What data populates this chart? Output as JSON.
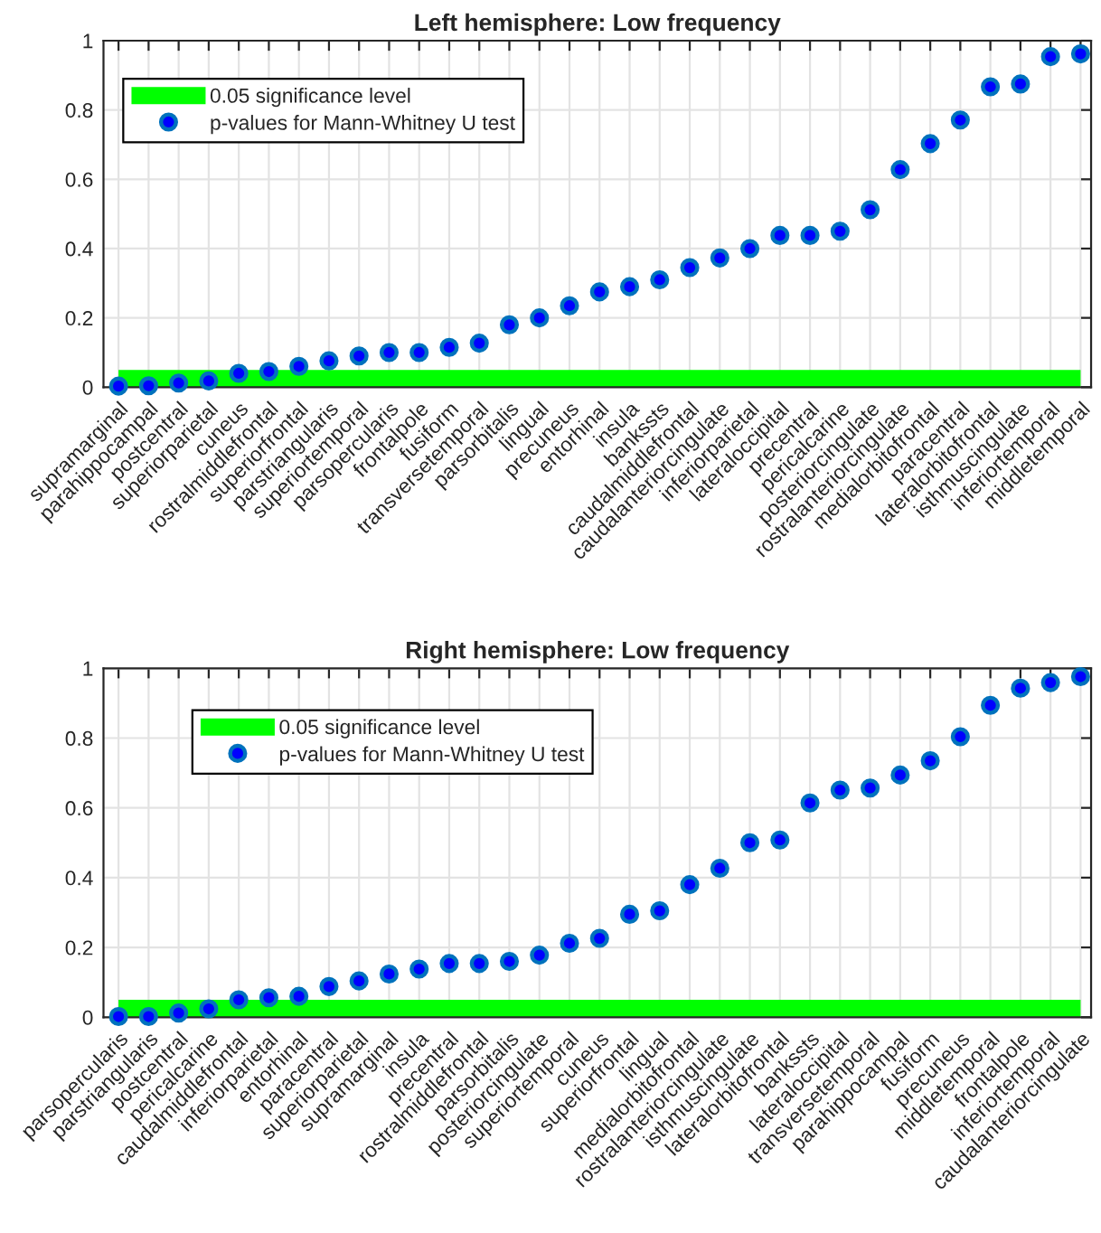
{
  "chart_data": [
    {
      "type": "scatter",
      "title": "Left hemisphere: Low frequency",
      "categories": [
        "supramarginal",
        "parahippocampal",
        "postcentral",
        "superiorparietal",
        "cuneus",
        "rostralmiddlefrontal",
        "superiorfrontal",
        "parstriangularis",
        "superiortemporal",
        "parsopercularis",
        "frontalpole",
        "fusiform",
        "transversetemporal",
        "parsorbitalis",
        "lingual",
        "precuneus",
        "entorhinal",
        "insula",
        "bankssts",
        "caudalmiddlefrontal",
        "caudalanteriorcingulate",
        "inferiorparietal",
        "lateraloccipital",
        "precentral",
        "pericalcarine",
        "posteriorcingulate",
        "rostralanteriorcingulate",
        "medialorbitofrontal",
        "paracentral",
        "lateralorbitofrontal",
        "isthmuscingulate",
        "inferiortemporal",
        "middletemporal"
      ],
      "series": [
        {
          "name": "p-values for Mann-Whitney U test",
          "color": "#0072bd",
          "values": [
            0.003,
            0.004,
            0.012,
            0.018,
            0.04,
            0.045,
            0.06,
            0.076,
            0.09,
            0.1,
            0.1,
            0.115,
            0.127,
            0.18,
            0.2,
            0.235,
            0.275,
            0.29,
            0.31,
            0.345,
            0.373,
            0.4,
            0.438,
            0.438,
            0.45,
            0.512,
            0.628,
            0.703,
            0.771,
            0.867,
            0.875,
            0.954,
            0.962
          ]
        }
      ],
      "ylim": [
        0,
        1
      ],
      "yticks": [
        0,
        0.2,
        0.4,
        0.6,
        0.8,
        1
      ],
      "grid": true,
      "legend": "top left",
      "marker": "circle",
      "bands": [
        {
          "axis": "y",
          "from": 0,
          "to": 0.05,
          "label": "0.05 significance level",
          "color": "#00ff00"
        }
      ]
    },
    {
      "type": "scatter",
      "title": "Right hemisphere: Low frequency",
      "categories": [
        "parsopercularis",
        "parstriangularis",
        "postcentral",
        "pericalcarine",
        "caudalmiddlefrontal",
        "inferiorparietal",
        "entorhinal",
        "paracentral",
        "superiorparietal",
        "supramarginal",
        "insula",
        "precentral",
        "rostralmiddlefrontal",
        "parsorbitalis",
        "posteriorcingulate",
        "superiortemporal",
        "cuneus",
        "superiorfrontal",
        "lingual",
        "medialorbitofrontal",
        "rostralanteriorcingulate",
        "isthmuscingulate",
        "lateralorbitofrontal",
        "bankssts",
        "lateraloccipital",
        "transversetemporal",
        "parahippocampal",
        "fusiform",
        "precuneus",
        "middletemporal",
        "frontalpole",
        "inferiortemporal",
        "caudalanteriorcingulate"
      ],
      "series": [
        {
          "name": "p-values for Mann-Whitney U test",
          "color": "#0072bd",
          "values": [
            0.002,
            0.002,
            0.012,
            0.024,
            0.05,
            0.056,
            0.06,
            0.088,
            0.104,
            0.124,
            0.138,
            0.154,
            0.154,
            0.16,
            0.178,
            0.212,
            0.226,
            0.295,
            0.305,
            0.38,
            0.427,
            0.5,
            0.508,
            0.614,
            0.651,
            0.657,
            0.694,
            0.735,
            0.804,
            0.894,
            0.943,
            0.959,
            0.976
          ]
        }
      ],
      "ylim": [
        0,
        1
      ],
      "yticks": [
        0,
        0.2,
        0.4,
        0.6,
        0.8,
        1
      ],
      "grid": true,
      "legend": "top left",
      "marker": "circle",
      "bands": [
        {
          "axis": "y",
          "from": 0,
          "to": 0.05,
          "label": "0.05 significance level",
          "color": "#00ff00"
        }
      ]
    }
  ]
}
